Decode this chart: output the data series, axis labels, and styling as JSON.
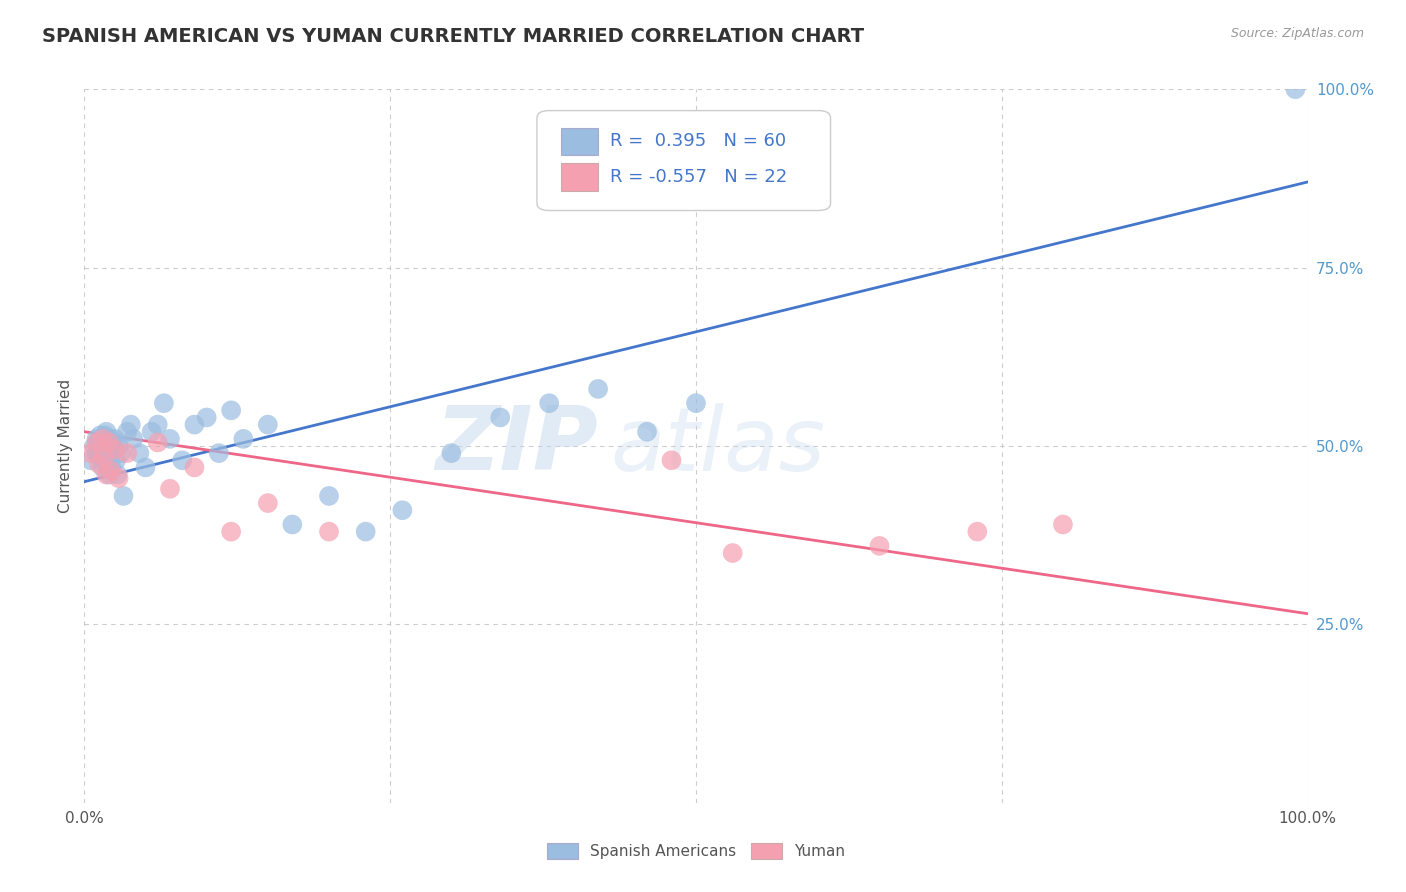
{
  "title": "SPANISH AMERICAN VS YUMAN CURRENTLY MARRIED CORRELATION CHART",
  "source": "Source: ZipAtlas.com",
  "ylabel": "Currently Married",
  "xlim": [
    0.0,
    1.0
  ],
  "ylim": [
    0.0,
    1.0
  ],
  "blue_R": 0.395,
  "blue_N": 60,
  "pink_R": -0.557,
  "pink_N": 22,
  "blue_color": "#9BBDE0",
  "pink_color": "#F5A0B0",
  "blue_line_color": "#4477CC",
  "pink_line_color": "#EE6688",
  "watermark_zip": "ZIP",
  "watermark_atlas": "atlas",
  "grid_color": "#CCCCCC",
  "background_color": "#FFFFFF",
  "title_fontsize": 14,
  "axis_label_fontsize": 11,
  "legend_fontsize": 13,
  "blue_scatter_x": [
    0.005,
    0.008,
    0.01,
    0.01,
    0.012,
    0.012,
    0.013,
    0.013,
    0.015,
    0.015,
    0.015,
    0.016,
    0.017,
    0.017,
    0.018,
    0.018,
    0.019,
    0.019,
    0.02,
    0.02,
    0.02,
    0.021,
    0.021,
    0.022,
    0.022,
    0.023,
    0.024,
    0.025,
    0.026,
    0.027,
    0.028,
    0.03,
    0.032,
    0.035,
    0.038,
    0.04,
    0.045,
    0.05,
    0.055,
    0.06,
    0.065,
    0.07,
    0.08,
    0.09,
    0.1,
    0.11,
    0.12,
    0.13,
    0.15,
    0.17,
    0.2,
    0.23,
    0.26,
    0.3,
    0.34,
    0.38,
    0.42,
    0.46,
    0.5,
    0.99
  ],
  "blue_scatter_y": [
    0.48,
    0.5,
    0.51,
    0.49,
    0.505,
    0.495,
    0.515,
    0.485,
    0.51,
    0.49,
    0.47,
    0.5,
    0.515,
    0.485,
    0.52,
    0.475,
    0.51,
    0.49,
    0.505,
    0.495,
    0.46,
    0.51,
    0.48,
    0.5,
    0.47,
    0.505,
    0.495,
    0.51,
    0.48,
    0.46,
    0.5,
    0.49,
    0.43,
    0.52,
    0.53,
    0.51,
    0.49,
    0.47,
    0.52,
    0.53,
    0.56,
    0.51,
    0.48,
    0.53,
    0.54,
    0.49,
    0.55,
    0.51,
    0.53,
    0.39,
    0.43,
    0.38,
    0.41,
    0.49,
    0.54,
    0.56,
    0.58,
    0.52,
    0.56,
    1.0
  ],
  "pink_scatter_x": [
    0.005,
    0.01,
    0.012,
    0.015,
    0.016,
    0.018,
    0.02,
    0.022,
    0.025,
    0.028,
    0.035,
    0.06,
    0.07,
    0.09,
    0.12,
    0.15,
    0.2,
    0.48,
    0.53,
    0.65,
    0.73,
    0.8
  ],
  "pink_scatter_y": [
    0.49,
    0.505,
    0.475,
    0.51,
    0.485,
    0.46,
    0.505,
    0.465,
    0.495,
    0.455,
    0.49,
    0.505,
    0.44,
    0.47,
    0.38,
    0.42,
    0.38,
    0.48,
    0.35,
    0.36,
    0.38,
    0.39
  ]
}
